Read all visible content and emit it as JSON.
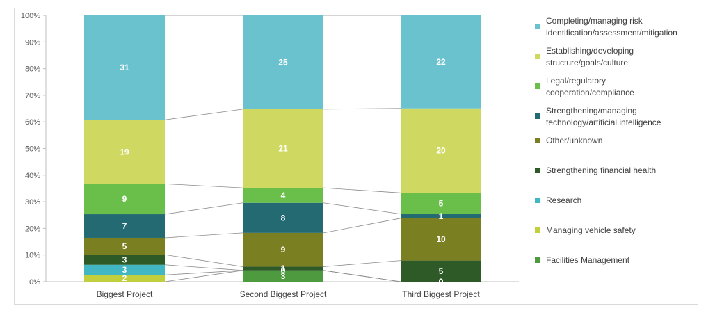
{
  "chart_data": {
    "type": "bar",
    "stacked": "percent",
    "categories": [
      "Biggest Project",
      "Second Biggest Project",
      "Third Biggest Project"
    ],
    "ylim": [
      0,
      100
    ],
    "y_ticks": [
      "0%",
      "10%",
      "20%",
      "30%",
      "40%",
      "50%",
      "60%",
      "70%",
      "80%",
      "90%",
      "100%"
    ],
    "grid": false,
    "legend_position": "right",
    "series_lines": true,
    "series": [
      {
        "name": "Facilities Management",
        "color": "#4e9a3f",
        "values": [
          0,
          3,
          0
        ]
      },
      {
        "name": "Managing vehicle safety",
        "color": "#c2cf3c",
        "values": [
          2,
          0,
          0
        ]
      },
      {
        "name": "Research",
        "color": "#41b7c4",
        "values": [
          3,
          0,
          0
        ]
      },
      {
        "name": "Strengthening financial health",
        "color": "#2d5a27",
        "values": [
          3,
          1,
          5
        ]
      },
      {
        "name": "Other/unknown",
        "color": "#7a7f22",
        "values": [
          5,
          9,
          10
        ]
      },
      {
        "name": "Strengthening/managing technology/artificial intelligence",
        "color": "#236a73",
        "values": [
          7,
          8,
          1
        ]
      },
      {
        "name": "Legal/regulatory cooperation/compliance",
        "color": "#6abf4b",
        "values": [
          9,
          4,
          5
        ]
      },
      {
        "name": "Establishing/developing structure/goals/culture",
        "color": "#cfd962",
        "values": [
          19,
          21,
          20
        ]
      },
      {
        "name": "Completing/managing risk identification/assessment/mitigation",
        "color": "#6bc2cf",
        "values": [
          31,
          25,
          22
        ]
      }
    ],
    "legend_labels": [
      [
        "Completing/managing risk",
        "identification/assessment/mitigation"
      ],
      [
        "Establishing/developing",
        "structure/goals/culture"
      ],
      [
        "Legal/regulatory",
        "cooperation/compliance"
      ],
      [
        "Strengthening/managing",
        "technology/artificial intelligence"
      ],
      [
        "Other/unknown"
      ],
      [
        "Strengthening financial health"
      ],
      [
        "Research"
      ],
      [
        "Managing vehicle safety"
      ],
      [
        "Facilities Management"
      ]
    ],
    "data_labels": [
      [
        null,
        "2",
        "3",
        "3",
        "5",
        "7",
        "9",
        "19",
        "31"
      ],
      [
        "3",
        "0",
        "0",
        "1",
        "9",
        "8",
        "4",
        "21",
        "25"
      ],
      [
        "0",
        "0",
        "0",
        "5",
        "10",
        "1",
        "5",
        "20",
        "22"
      ]
    ]
  }
}
